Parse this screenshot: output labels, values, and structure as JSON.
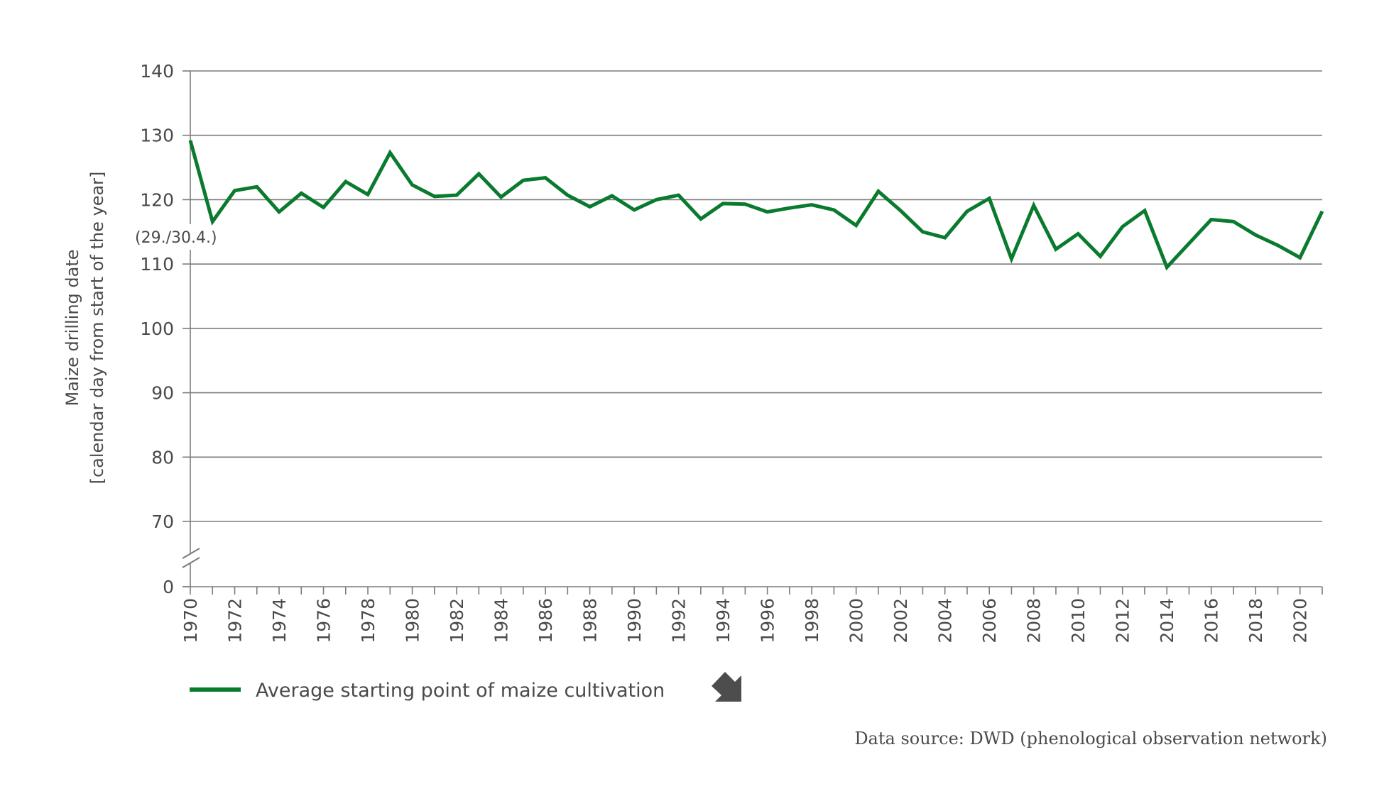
{
  "chart_data": {
    "type": "line",
    "title": "",
    "xlabel": "",
    "ylabel": "Maize drilling date",
    "ylabel_line2": "[calendar day from start of the year]",
    "ylim": [
      0,
      140
    ],
    "y_axis_break": [
      0,
      70
    ],
    "y_ticks": [
      0,
      70,
      80,
      90,
      100,
      110,
      120,
      130,
      140
    ],
    "x_tick_labels": [
      "1970",
      "1972",
      "1974",
      "1976",
      "1978",
      "1980",
      "1982",
      "1984",
      "1986",
      "1988",
      "1990",
      "1992",
      "1994",
      "1996",
      "1998",
      "2000",
      "2002",
      "2004",
      "2006",
      "2008",
      "2010",
      "2012",
      "2014",
      "2016",
      "2018",
      "2020"
    ],
    "grid": true,
    "annotation": "(29./30.4.)",
    "annotation_value": 120,
    "series": [
      {
        "name": "Average starting point of maize cultivation",
        "color": "#0a7a2f",
        "x": [
          1970,
          1971,
          1972,
          1973,
          1974,
          1975,
          1976,
          1977,
          1978,
          1979,
          1980,
          1981,
          1982,
          1983,
          1984,
          1985,
          1986,
          1987,
          1988,
          1989,
          1990,
          1991,
          1992,
          1993,
          1994,
          1995,
          1996,
          1997,
          1998,
          1999,
          2000,
          2001,
          2002,
          2003,
          2004,
          2005,
          2006,
          2007,
          2008,
          2009,
          2010,
          2011,
          2012,
          2013,
          2014,
          2015,
          2016,
          2017,
          2018,
          2019,
          2020,
          2021
        ],
        "values": [
          129.2,
          116.6,
          121.4,
          122.0,
          118.1,
          121.0,
          118.8,
          122.8,
          120.8,
          127.3,
          122.3,
          120.5,
          120.7,
          124.0,
          120.4,
          123.0,
          123.4,
          120.7,
          118.9,
          120.6,
          118.4,
          120.0,
          120.7,
          117.0,
          119.4,
          119.3,
          118.1,
          118.7,
          119.2,
          118.4,
          116.0,
          121.3,
          118.3,
          115.0,
          114.1,
          118.2,
          120.2,
          110.8,
          119.1,
          112.3,
          114.7,
          111.2,
          115.8,
          118.3,
          109.5,
          113.2,
          116.9,
          116.6,
          114.5,
          112.9,
          111.0,
          118.2
        ]
      }
    ],
    "legend": {
      "position": "bottom-left",
      "trend_icon": "arrow-down-right-icon"
    },
    "source": "Data source: DWD (phenological observation network)"
  },
  "colors": {
    "axis": "#7b7b7b",
    "grid": "#7b7b7b",
    "text": "#4a4a4a",
    "trend_icon": "#4d4d4d"
  }
}
